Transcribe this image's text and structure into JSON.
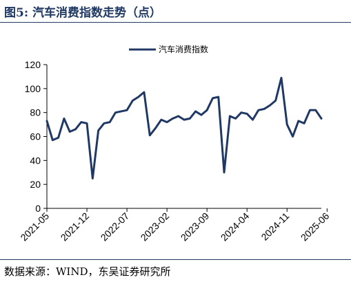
{
  "figure": {
    "title": "图5:  汽车消费指数走势（点）",
    "source": "数据来源：WIND，东吴证券研究所"
  },
  "chart_data": {
    "type": "line",
    "series": [
      {
        "name": "汽车消费指数",
        "color": "#1f3864",
        "values": [
          73,
          57,
          59,
          75,
          64,
          66,
          72,
          71,
          25,
          65,
          71,
          72,
          80,
          81,
          82,
          90,
          93,
          97,
          61,
          67,
          74,
          72,
          75,
          77,
          74,
          75,
          81,
          78,
          82,
          92,
          93,
          30,
          77,
          75,
          80,
          79,
          74,
          82,
          83,
          86,
          90,
          109,
          70,
          60,
          73,
          71,
          82,
          82,
          75
        ]
      }
    ],
    "x_tick_labels": [
      "2021-05",
      "2021-12",
      "2022-07",
      "2023-02",
      "2023-09",
      "2024-04",
      "2024-11",
      "2025-06"
    ],
    "x_tick_step": 7,
    "y_ticks": [
      0,
      20,
      40,
      60,
      80,
      100,
      120
    ],
    "ylim": [
      0,
      120
    ],
    "legend_position": "top-center",
    "grid": false
  }
}
